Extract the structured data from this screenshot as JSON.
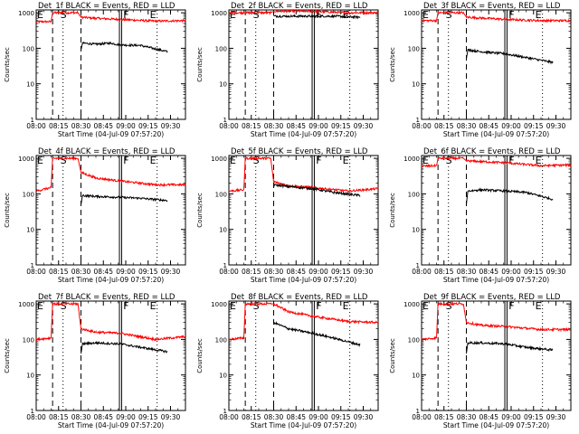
{
  "chart_data": [
    {
      "type": "line",
      "title": "Det_1f BLACK = Events, RED = LLD",
      "xlabel": "Start Time (04-Jul-09 07:57:20)",
      "ylabel": "Counts/sec",
      "x_ticks": [
        "08:00",
        "08:15",
        "08:30",
        "08:45",
        "09:00",
        "09:15",
        "09:30"
      ],
      "y_ticks": [
        "1",
        "10",
        "100",
        "1000"
      ],
      "yscale": "log",
      "ylim": [
        1,
        1200
      ],
      "markers": [
        {
          "label": "E",
          "x": 0.0
        },
        {
          "label": "S",
          "x": 15.5
        }
      ],
      "end_labels": [
        {
          "label": "E",
          "x": 81
        }
      ],
      "dashed_lines": [
        11,
        30
      ],
      "dotted_lines": [
        18,
        81
      ],
      "solid_lines": [
        56.5
      ],
      "series": [
        {
          "color": "#ff0000",
          "values": [
            [
              0,
              560
            ],
            [
              10,
              560
            ],
            [
              11,
              1000
            ],
            [
              28,
              1000
            ],
            [
              30,
              750
            ],
            [
              40,
              700
            ],
            [
              56,
              650
            ],
            [
              80,
              580
            ],
            [
              100,
              600
            ]
          ]
        },
        {
          "color": "#000000",
          "values": [
            [
              30,
              90
            ],
            [
              31,
              140
            ],
            [
              40,
              130
            ],
            [
              50,
              140
            ],
            [
              56,
              125
            ],
            [
              70,
              120
            ],
            [
              88,
              80
            ]
          ]
        }
      ]
    },
    {
      "type": "line",
      "title": "Det_2f BLACK = Events, RED = LLD",
      "xlabel": "Start Time (04-Jul-09 07:57:20)",
      "ylabel": "Counts/sec",
      "x_ticks": [
        "08:00",
        "08:15",
        "08:30",
        "08:45",
        "09:00",
        "09:15",
        "09:30"
      ],
      "y_ticks": [
        "1",
        "10",
        "100",
        "1000"
      ],
      "yscale": "log",
      "ylim": [
        1,
        1200
      ],
      "markers": [
        {
          "label": "E",
          "x": 0.0
        },
        {
          "label": "S",
          "x": 15.5
        }
      ],
      "end_labels": [
        {
          "label": "E",
          "x": 81
        }
      ],
      "dashed_lines": [
        11,
        30
      ],
      "dotted_lines": [
        18,
        81
      ],
      "solid_lines": [
        56.5
      ],
      "series": [
        {
          "color": "#ff0000",
          "values": [
            [
              0,
              1000
            ],
            [
              10,
              1000
            ],
            [
              11,
              1000
            ],
            [
              28,
              1000
            ],
            [
              30,
              1100
            ],
            [
              56,
              1100
            ],
            [
              80,
              1000
            ],
            [
              100,
              1000
            ]
          ]
        },
        {
          "color": "#000000",
          "values": [
            [
              30,
              800
            ],
            [
              40,
              800
            ],
            [
              56,
              800
            ],
            [
              70,
              800
            ],
            [
              88,
              750
            ]
          ]
        }
      ]
    },
    {
      "type": "line",
      "title": "Det_3f BLACK = Events, RED = LLD",
      "xlabel": "Start Time (04-Jul-09 07:57:20)",
      "ylabel": "Counts/sec",
      "x_ticks": [
        "08:00",
        "08:15",
        "08:30",
        "08:45",
        "09:00",
        "09:15",
        "09:30"
      ],
      "y_ticks": [
        "1",
        "10",
        "100",
        "1000"
      ],
      "yscale": "log",
      "ylim": [
        1,
        1200
      ],
      "markers": [
        {
          "label": "E",
          "x": 0.0
        },
        {
          "label": "S",
          "x": 15.5
        }
      ],
      "end_labels": [
        {
          "label": "E",
          "x": 81
        }
      ],
      "dashed_lines": [
        11,
        30
      ],
      "dotted_lines": [
        18,
        81
      ],
      "solid_lines": [
        56.5
      ],
      "series": [
        {
          "color": "#ff0000",
          "values": [
            [
              0,
              600
            ],
            [
              10,
              600
            ],
            [
              11,
              1000
            ],
            [
              28,
              1000
            ],
            [
              30,
              750
            ],
            [
              56,
              650
            ],
            [
              80,
              600
            ],
            [
              100,
              600
            ]
          ]
        },
        {
          "color": "#000000",
          "values": [
            [
              30,
              50
            ],
            [
              31,
              90
            ],
            [
              40,
              80
            ],
            [
              56,
              70
            ],
            [
              70,
              55
            ],
            [
              88,
              40
            ]
          ]
        }
      ]
    },
    {
      "type": "line",
      "title": "Det_4f BLACK = Events, RED = LLD",
      "xlabel": "Start Time (04-Jul-09 07:57:20)",
      "ylabel": "Counts/sec",
      "x_ticks": [
        "08:00",
        "08:15",
        "08:30",
        "08:45",
        "09:00",
        "09:15",
        "09:30"
      ],
      "y_ticks": [
        "1",
        "10",
        "100",
        "1000"
      ],
      "yscale": "log",
      "ylim": [
        1,
        1200
      ],
      "markers": [
        {
          "label": "E",
          "x": 0.0
        },
        {
          "label": "S",
          "x": 15.5
        }
      ],
      "end_labels": [
        {
          "label": "E",
          "x": 81
        }
      ],
      "dashed_lines": [
        11,
        30
      ],
      "dotted_lines": [
        18,
        81
      ],
      "solid_lines": [
        56.5
      ],
      "series": [
        {
          "color": "#ff0000",
          "values": [
            [
              0,
              120
            ],
            [
              10,
              150
            ],
            [
              11,
              1000
            ],
            [
              28,
              1000
            ],
            [
              30,
              400
            ],
            [
              40,
              280
            ],
            [
              56,
              230
            ],
            [
              80,
              180
            ],
            [
              100,
              180
            ]
          ]
        },
        {
          "color": "#000000",
          "values": [
            [
              30,
              50
            ],
            [
              31,
              90
            ],
            [
              40,
              85
            ],
            [
              56,
              80
            ],
            [
              70,
              75
            ],
            [
              88,
              65
            ]
          ]
        }
      ]
    },
    {
      "type": "line",
      "title": "Det_5f BLACK = Events, RED = LLD",
      "xlabel": "Start Time (04-Jul-09 07:57:20)",
      "ylabel": "Counts/sec",
      "x_ticks": [
        "08:00",
        "08:15",
        "08:30",
        "08:45",
        "09:00",
        "09:15",
        "09:30"
      ],
      "y_ticks": [
        "1",
        "10",
        "100",
        "1000"
      ],
      "yscale": "log",
      "ylim": [
        1,
        1200
      ],
      "markers": [
        {
          "label": "E",
          "x": 0.0
        },
        {
          "label": "S",
          "x": 15.5
        }
      ],
      "end_labels": [
        {
          "label": "E",
          "x": 81
        }
      ],
      "dashed_lines": [
        11,
        30
      ],
      "dotted_lines": [
        18,
        81
      ],
      "solid_lines": [
        56.5
      ],
      "series": [
        {
          "color": "#ff0000",
          "values": [
            [
              0,
              120
            ],
            [
              10,
              130
            ],
            [
              11,
              1000
            ],
            [
              28,
              1000
            ],
            [
              30,
              220
            ],
            [
              40,
              170
            ],
            [
              56,
              150
            ],
            [
              80,
              120
            ],
            [
              100,
              140
            ]
          ]
        },
        {
          "color": "#000000",
          "values": [
            [
              30,
              180
            ],
            [
              40,
              160
            ],
            [
              56,
              140
            ],
            [
              70,
              110
            ],
            [
              88,
              90
            ]
          ]
        }
      ]
    },
    {
      "type": "line",
      "title": "Det_6f BLACK = Events, RED = LLD",
      "xlabel": "Start Time (04-Jul-09 07:57:20)",
      "ylabel": "Counts/sec",
      "x_ticks": [
        "08:00",
        "08:15",
        "08:30",
        "08:45",
        "09:00",
        "09:15",
        "09:30"
      ],
      "y_ticks": [
        "1",
        "10",
        "100",
        "1000"
      ],
      "yscale": "log",
      "ylim": [
        1,
        1200
      ],
      "markers": [
        {
          "label": "E",
          "x": 0.0
        },
        {
          "label": "S",
          "x": 15.5
        }
      ],
      "end_labels": [
        {
          "label": "E",
          "x": 81
        }
      ],
      "dashed_lines": [
        11,
        30
      ],
      "dotted_lines": [
        18,
        81
      ],
      "solid_lines": [
        56.5
      ],
      "series": [
        {
          "color": "#ff0000",
          "values": [
            [
              0,
              600
            ],
            [
              10,
              620
            ],
            [
              11,
              1000
            ],
            [
              28,
              1000
            ],
            [
              30,
              850
            ],
            [
              56,
              750
            ],
            [
              80,
              620
            ],
            [
              100,
              650
            ]
          ]
        },
        {
          "color": "#000000",
          "values": [
            [
              30,
              50
            ],
            [
              31,
              120
            ],
            [
              40,
              130
            ],
            [
              56,
              120
            ],
            [
              70,
              110
            ],
            [
              88,
              70
            ]
          ]
        }
      ]
    },
    {
      "type": "line",
      "title": "Det_7f BLACK = Events, RED = LLD",
      "xlabel": "Start Time (04-Jul-09 07:57:20)",
      "ylabel": "Counts/sec",
      "x_ticks": [
        "08:00",
        "08:15",
        "08:30",
        "08:45",
        "09:00",
        "09:15",
        "09:30"
      ],
      "y_ticks": [
        "1",
        "10",
        "100",
        "1000"
      ],
      "yscale": "log",
      "ylim": [
        1,
        1200
      ],
      "markers": [
        {
          "label": "E",
          "x": 0.0
        },
        {
          "label": "S",
          "x": 15.5
        }
      ],
      "end_labels": [
        {
          "label": "E",
          "x": 81
        }
      ],
      "dashed_lines": [
        11,
        30
      ],
      "dotted_lines": [
        18,
        81
      ],
      "solid_lines": [
        56.5
      ],
      "series": [
        {
          "color": "#ff0000",
          "values": [
            [
              0,
              100
            ],
            [
              10,
              110
            ],
            [
              11,
              1000
            ],
            [
              28,
              1000
            ],
            [
              30,
              200
            ],
            [
              40,
              160
            ],
            [
              56,
              150
            ],
            [
              80,
              100
            ],
            [
              100,
              120
            ]
          ]
        },
        {
          "color": "#000000",
          "values": [
            [
              30,
              40
            ],
            [
              31,
              75
            ],
            [
              40,
              80
            ],
            [
              56,
              75
            ],
            [
              70,
              60
            ],
            [
              88,
              45
            ]
          ]
        }
      ]
    },
    {
      "type": "line",
      "title": "Det_8f BLACK = Events, RED = LLD",
      "xlabel": "Start Time (04-Jul-09 07:57:20)",
      "ylabel": "Counts/sec",
      "x_ticks": [
        "08:00",
        "08:15",
        "08:30",
        "08:45",
        "09:00",
        "09:15",
        "09:30"
      ],
      "y_ticks": [
        "1",
        "10",
        "100",
        "1000"
      ],
      "yscale": "log",
      "ylim": [
        1,
        1200
      ],
      "markers": [
        {
          "label": "E",
          "x": 0.0
        },
        {
          "label": "S",
          "x": 15.5
        }
      ],
      "end_labels": [
        {
          "label": "E",
          "x": 81
        }
      ],
      "dashed_lines": [
        11,
        30
      ],
      "dotted_lines": [
        18,
        81
      ],
      "solid_lines": [
        56.5
      ],
      "series": [
        {
          "color": "#ff0000",
          "values": [
            [
              0,
              100
            ],
            [
              10,
              110
            ],
            [
              11,
              1000
            ],
            [
              28,
              1000
            ],
            [
              30,
              1000
            ],
            [
              40,
              600
            ],
            [
              56,
              450
            ],
            [
              80,
              320
            ],
            [
              100,
              300
            ]
          ]
        },
        {
          "color": "#000000",
          "values": [
            [
              30,
              300
            ],
            [
              40,
              200
            ],
            [
              56,
              150
            ],
            [
              70,
              110
            ],
            [
              88,
              70
            ]
          ]
        }
      ]
    },
    {
      "type": "line",
      "title": "Det_9f BLACK = Events, RED = LLD",
      "xlabel": "Start Time (04-Jul-09 07:57:20)",
      "ylabel": "Counts/sec",
      "x_ticks": [
        "08:00",
        "08:15",
        "08:30",
        "08:45",
        "09:00",
        "09:15",
        "09:30"
      ],
      "y_ticks": [
        "1",
        "10",
        "100",
        "1000"
      ],
      "yscale": "log",
      "ylim": [
        1,
        1200
      ],
      "markers": [
        {
          "label": "E",
          "x": 0.0
        },
        {
          "label": "S",
          "x": 15.5
        }
      ],
      "end_labels": [
        {
          "label": "E",
          "x": 81
        }
      ],
      "dashed_lines": [
        11,
        30
      ],
      "dotted_lines": [
        18,
        81
      ],
      "solid_lines": [
        56.5
      ],
      "series": [
        {
          "color": "#ff0000",
          "values": [
            [
              0,
              100
            ],
            [
              10,
              110
            ],
            [
              11,
              1000
            ],
            [
              28,
              1000
            ],
            [
              30,
              300
            ],
            [
              40,
              250
            ],
            [
              56,
              230
            ],
            [
              80,
              190
            ],
            [
              100,
              190
            ]
          ]
        },
        {
          "color": "#000000",
          "values": [
            [
              30,
              40
            ],
            [
              31,
              80
            ],
            [
              40,
              80
            ],
            [
              56,
              75
            ],
            [
              70,
              60
            ],
            [
              88,
              50
            ]
          ]
        }
      ]
    }
  ]
}
